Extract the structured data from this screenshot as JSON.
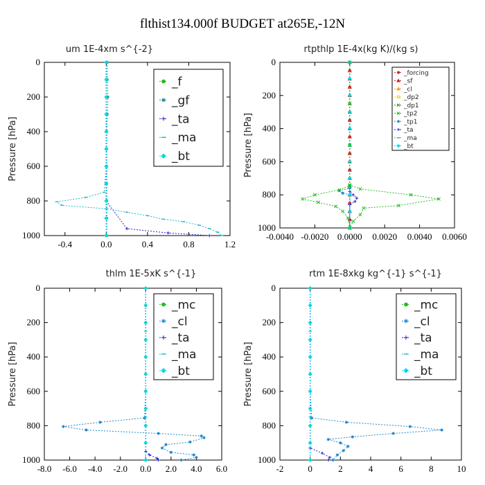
{
  "figure": {
    "title": "flthist134.000f  BUDGET at265E,-12N"
  },
  "chart_data": [
    {
      "type": "line",
      "title": "um  1E-4xm s^{-2}",
      "ylabel": "Pressure [hPa]",
      "xlim": [
        -0.6,
        1.2
      ],
      "ylim": [
        1000,
        0
      ],
      "xticks": [
        "-0.4",
        "0.0",
        "0.4",
        "0.8",
        "1.2"
      ],
      "xtick_values": [
        -0.4,
        0.0,
        0.4,
        0.8,
        1.2
      ],
      "yticks": [
        "0",
        "200",
        "400",
        "600",
        "800",
        "1000"
      ],
      "legend_position": "top-right",
      "legend_size": "large",
      "series": [
        {
          "name": "_f",
          "color": "#22bb22",
          "marker": "circle",
          "x": [
            0,
            0,
            0,
            0,
            0,
            0,
            0,
            0,
            0,
            0,
            0
          ],
          "y": [
            0,
            100,
            200,
            300,
            400,
            500,
            600,
            700,
            800,
            900,
            1000
          ]
        },
        {
          "name": "_gf",
          "color": "#1a8a8a",
          "marker": "star",
          "x": [
            0.01,
            0.01,
            0.015,
            0.01,
            0.005,
            0.005,
            0.005,
            0.005,
            0.005,
            0.005,
            0.005
          ],
          "y": [
            0,
            100,
            200,
            300,
            400,
            500,
            600,
            700,
            800,
            900,
            1000
          ]
        },
        {
          "name": "_ta",
          "color": "#2222cc",
          "marker": "plus",
          "x": [
            0,
            0,
            0,
            0,
            0,
            0,
            0,
            0,
            0,
            0.2,
            0.6,
            1.0
          ],
          "y": [
            0,
            100,
            200,
            300,
            400,
            500,
            600,
            700,
            800,
            960,
            985,
            1000
          ]
        },
        {
          "name": "_ma",
          "color": "#19b5c8",
          "marker": "dash",
          "x": [
            0,
            0,
            0,
            0,
            0,
            0,
            0,
            -0.02,
            -0.2,
            -0.48,
            -0.43,
            0.0,
            0.2,
            0.4,
            0.55,
            0.75,
            0.9,
            1.0,
            1.08,
            1.12
          ],
          "y": [
            0,
            100,
            200,
            300,
            400,
            500,
            600,
            750,
            780,
            805,
            825,
            845,
            865,
            885,
            905,
            920,
            940,
            960,
            980,
            1000
          ]
        },
        {
          "name": "_bt",
          "color": "#00d8e8",
          "marker": "diamond",
          "x": [
            0,
            0,
            0,
            0,
            0,
            0,
            0,
            0,
            0,
            0,
            0
          ],
          "y": [
            0,
            100,
            200,
            300,
            400,
            500,
            600,
            700,
            800,
            900,
            1000
          ]
        }
      ]
    },
    {
      "type": "line",
      "title": "rtpthlp  1E-4x(kg K)/(kg s)",
      "ylabel": "Pressure [hPa]",
      "xlim": [
        -0.004,
        0.006
      ],
      "ylim": [
        1000,
        0
      ],
      "xticks": [
        "-0.0040",
        "-0.0020",
        "0.0000",
        "0.0020",
        "0.0040",
        "0.0060"
      ],
      "xtick_values": [
        -0.004,
        -0.002,
        0.0,
        0.002,
        0.004,
        0.006
      ],
      "yticks": [
        "0",
        "200",
        "400",
        "600",
        "800",
        "1000"
      ],
      "legend_position": "top-right",
      "legend_size": "small",
      "series": [
        {
          "name": "_forcing",
          "color": "#dd2222",
          "marker": "circle",
          "x": [
            0,
            0,
            0,
            0,
            0,
            0,
            0,
            0,
            0,
            0,
            0,
            0,
            0,
            0,
            0,
            0,
            0,
            0,
            0,
            0,
            0
          ],
          "y": [
            0,
            50,
            100,
            150,
            200,
            250,
            300,
            350,
            400,
            450,
            500,
            550,
            600,
            650,
            700,
            750,
            800,
            850,
            900,
            950,
            1000
          ]
        },
        {
          "name": "_sf",
          "color": "#cc2222",
          "marker": "triangle",
          "x": [
            0,
            0,
            0,
            0,
            0,
            0,
            0,
            0,
            0,
            0,
            0,
            0,
            0,
            0,
            0,
            0,
            0,
            0,
            0,
            0,
            0
          ],
          "y": [
            0,
            50,
            100,
            150,
            200,
            250,
            300,
            350,
            400,
            450,
            500,
            550,
            600,
            650,
            700,
            750,
            800,
            850,
            900,
            950,
            1000
          ]
        },
        {
          "name": "_cl",
          "color": "#ff9900",
          "marker": "triangle",
          "x": [
            0,
            0,
            0,
            0,
            0
          ],
          "y": [
            0,
            250,
            500,
            750,
            1000
          ]
        },
        {
          "name": "_dp2",
          "color": "#dddd00",
          "marker": "square",
          "x": [
            0,
            0,
            0,
            0,
            0
          ],
          "y": [
            0,
            250,
            500,
            750,
            1000
          ]
        },
        {
          "name": "_dp1",
          "color": "#228822",
          "marker": "cross",
          "x": [
            0,
            0,
            0,
            0,
            0
          ],
          "y": [
            0,
            250,
            500,
            750,
            1000
          ]
        },
        {
          "name": "_tp2",
          "color": "#22bb22",
          "marker": "cross",
          "x": [
            0,
            0,
            0,
            0.0006,
            0.0035,
            0.0051,
            0.0028,
            0.0008,
            0.0006,
            0.0002,
            0
          ],
          "y": [
            0,
            500,
            740,
            765,
            800,
            825,
            865,
            880,
            920,
            960,
            1000
          ]
        },
        {
          "name": "_tp1",
          "color": "#2288cc",
          "marker": "star",
          "x": [
            0,
            0,
            0,
            -0.0006,
            -0.0004,
            0,
            0,
            0
          ],
          "y": [
            0,
            500,
            760,
            775,
            790,
            800,
            900,
            1000
          ]
        },
        {
          "name": "_ta",
          "color": "#2222cc",
          "marker": "plus",
          "x": [
            0,
            0,
            0,
            0.0002,
            0.0004,
            0.0003,
            0,
            0
          ],
          "y": [
            0,
            500,
            780,
            800,
            820,
            840,
            860,
            1000
          ]
        },
        {
          "name": "_ma",
          "color": "#19b5c8",
          "marker": "dash",
          "x": [
            0,
            0,
            0,
            0,
            0
          ],
          "y": [
            0,
            250,
            500,
            750,
            1000
          ]
        },
        {
          "name": "_bt",
          "color": "#00d8e8",
          "marker": "diamond",
          "x": [
            0,
            0,
            0,
            0,
            0,
            0,
            0,
            0,
            0,
            0,
            0
          ],
          "y": [
            0,
            100,
            200,
            300,
            400,
            500,
            600,
            700,
            800,
            900,
            1000
          ]
        },
        {
          "name": "",
          "color": "#22bb22",
          "marker": "cross",
          "x": [
            0,
            0,
            0,
            -0.0006,
            -0.002,
            -0.0027,
            -0.0018,
            -0.0008,
            -0.0004,
            -0.0001,
            0
          ],
          "y": [
            0,
            500,
            745,
            770,
            800,
            825,
            845,
            870,
            900,
            940,
            1000
          ]
        }
      ]
    },
    {
      "type": "line",
      "title": "thlm  1E-5xK s^{-1}",
      "ylabel": "Pressure [hPa]",
      "xlim": [
        -8.0,
        6.0
      ],
      "ylim": [
        1000,
        0
      ],
      "xticks": [
        "-8.0",
        "-6.0",
        "-4.0",
        "-2.0",
        "0.0",
        "2.0",
        "4.0",
        "6.0"
      ],
      "xtick_values": [
        -8,
        -6,
        -4,
        -2,
        0,
        2,
        4,
        6
      ],
      "yticks": [
        "0",
        "200",
        "400",
        "600",
        "800",
        "1000"
      ],
      "legend_position": "top-right",
      "legend_size": "large",
      "series": [
        {
          "name": "_mc",
          "color": "#22bb22",
          "marker": "circle",
          "x": [
            0,
            0,
            0,
            0,
            0,
            0,
            0,
            0,
            0,
            0,
            0
          ],
          "y": [
            0,
            100,
            200,
            300,
            400,
            500,
            600,
            700,
            800,
            900,
            1000
          ]
        },
        {
          "name": "_cl",
          "color": "#2288cc",
          "marker": "star",
          "x": [
            0,
            0,
            0,
            -0.1,
            -3.6,
            -6.5,
            -4.7,
            1.0,
            4.4,
            4.6,
            3.5,
            1.6,
            1.3,
            2.0,
            3.8,
            4.0,
            2.8
          ],
          "y": [
            0,
            300,
            600,
            755,
            780,
            805,
            825,
            845,
            860,
            870,
            895,
            910,
            930,
            955,
            970,
            985,
            1000
          ]
        },
        {
          "name": "_ta",
          "color": "#2222cc",
          "marker": "plus",
          "x": [
            0,
            0,
            0,
            0,
            0,
            0.3,
            0.9,
            1.0
          ],
          "y": [
            0,
            300,
            600,
            900,
            950,
            970,
            990,
            1000
          ]
        },
        {
          "name": "_ma",
          "color": "#19b5c8",
          "marker": "dash",
          "x": [
            0,
            0,
            0,
            0,
            0
          ],
          "y": [
            0,
            250,
            500,
            750,
            1000
          ]
        },
        {
          "name": "_bt",
          "color": "#00d8e8",
          "marker": "diamond",
          "x": [
            0,
            0,
            0,
            0,
            0,
            0,
            0,
            0,
            0,
            0,
            0
          ],
          "y": [
            0,
            100,
            200,
            300,
            400,
            500,
            600,
            700,
            800,
            900,
            1000
          ]
        }
      ]
    },
    {
      "type": "line",
      "title": "rtm  1E-8xkg kg^{-1} s^{-1}",
      "ylabel": "Pressure [hPa]",
      "xlim": [
        -2,
        10
      ],
      "ylim": [
        1000,
        0
      ],
      "xticks": [
        "-2",
        "0",
        "2",
        "4",
        "6",
        "8",
        "10"
      ],
      "xtick_values": [
        -2,
        0,
        2,
        4,
        6,
        8,
        10
      ],
      "yticks": [
        "0",
        "200",
        "400",
        "600",
        "800",
        "1000"
      ],
      "legend_position": "top-right",
      "legend_size": "large",
      "series": [
        {
          "name": "_mc",
          "color": "#22bb22",
          "marker": "circle",
          "x": [
            0,
            0,
            0,
            0,
            0,
            0,
            0,
            0,
            0,
            0,
            0
          ],
          "y": [
            0,
            100,
            200,
            300,
            400,
            500,
            600,
            700,
            800,
            900,
            1000
          ]
        },
        {
          "name": "_cl",
          "color": "#2288cc",
          "marker": "star",
          "x": [
            0,
            0,
            0,
            0.1,
            2.4,
            6.6,
            8.7,
            5.5,
            2.8,
            1.2,
            2.0,
            2.5,
            2.2,
            1.8,
            1.5
          ],
          "y": [
            0,
            300,
            600,
            755,
            780,
            805,
            825,
            845,
            865,
            880,
            900,
            920,
            945,
            970,
            1000
          ]
        },
        {
          "name": "_ta",
          "color": "#2222cc",
          "marker": "plus",
          "x": [
            0,
            0,
            0,
            0,
            0,
            0.8,
            1.3,
            1.2
          ],
          "y": [
            0,
            300,
            600,
            900,
            930,
            960,
            985,
            1000
          ]
        },
        {
          "name": "_ma",
          "color": "#19b5c8",
          "marker": "dash",
          "x": [
            0,
            0,
            0,
            0,
            0
          ],
          "y": [
            0,
            250,
            500,
            750,
            1000
          ]
        },
        {
          "name": "_bt",
          "color": "#00d8e8",
          "marker": "diamond",
          "x": [
            0,
            0,
            0,
            0,
            0,
            0,
            0,
            0,
            0,
            0,
            0
          ],
          "y": [
            0,
            100,
            200,
            300,
            400,
            500,
            600,
            700,
            800,
            900,
            1000
          ]
        }
      ]
    }
  ]
}
